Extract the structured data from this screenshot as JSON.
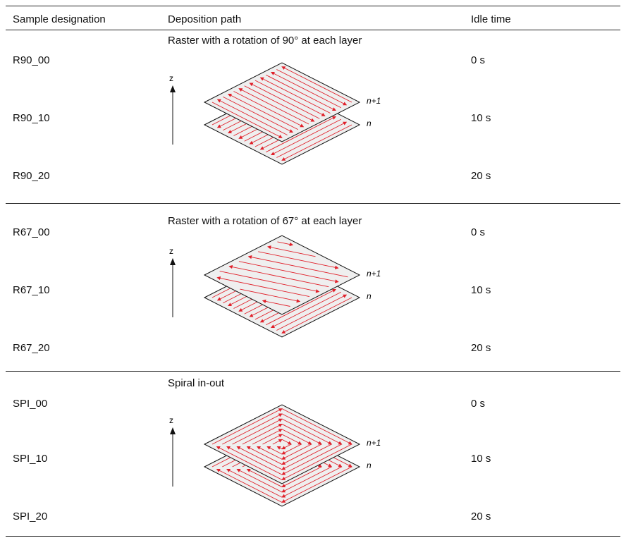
{
  "table": {
    "headers": {
      "sample": "Sample designation",
      "path": "Deposition path",
      "idle": "Idle time"
    },
    "groups": [
      {
        "path_label": "Raster with a rotation of 90° at each layer",
        "diagram": {
          "axis": "z",
          "top_layer": "n+1",
          "bottom_layer": "n",
          "pattern": "raster-90"
        },
        "rows": [
          {
            "sample": "R90_00",
            "idle": "0 s"
          },
          {
            "sample": "R90_10",
            "idle": "10 s"
          },
          {
            "sample": "R90_20",
            "idle": "20 s"
          }
        ]
      },
      {
        "path_label": "Raster with a rotation of 67° at each layer",
        "diagram": {
          "axis": "z",
          "top_layer": "n+1",
          "bottom_layer": "n",
          "pattern": "raster-67"
        },
        "rows": [
          {
            "sample": "R67_00",
            "idle": "0 s"
          },
          {
            "sample": "R67_10",
            "idle": "10 s"
          },
          {
            "sample": "R67_20",
            "idle": "20 s"
          }
        ]
      },
      {
        "path_label": "Spiral in-out",
        "diagram": {
          "axis": "z",
          "top_layer": "n+1",
          "bottom_layer": "n",
          "pattern": "spiral"
        },
        "rows": [
          {
            "sample": "SPI_00",
            "idle": "0 s"
          },
          {
            "sample": "SPI_10",
            "idle": "10 s"
          },
          {
            "sample": "SPI_20",
            "idle": "20 s"
          }
        ]
      }
    ]
  },
  "colors": {
    "path_line": "#e0202a",
    "layer_fill": "#efefef",
    "layer_edge": "#111111",
    "rule": "#222222"
  }
}
